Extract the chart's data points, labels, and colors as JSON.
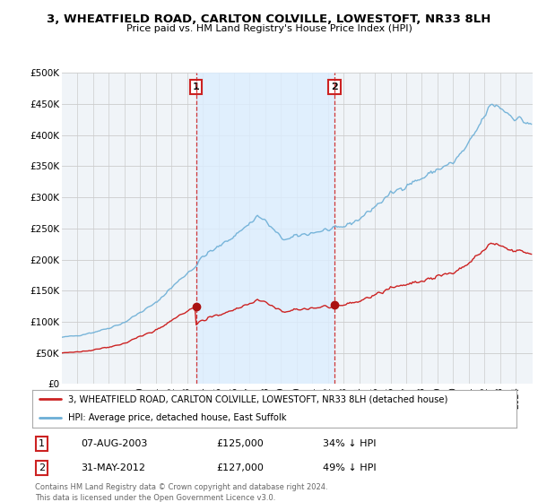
{
  "title": "3, WHEATFIELD ROAD, CARLTON COLVILLE, LOWESTOFT, NR33 8LH",
  "subtitle": "Price paid vs. HM Land Registry's House Price Index (HPI)",
  "legend_line1": "3, WHEATFIELD ROAD, CARLTON COLVILLE, LOWESTOFT, NR33 8LH (detached house)",
  "legend_line2": "HPI: Average price, detached house, East Suffolk",
  "transaction1_date": "07-AUG-2003",
  "transaction1_price": 125000,
  "transaction1_label": "34% ↓ HPI",
  "transaction2_date": "31-MAY-2012",
  "transaction2_price": 127000,
  "transaction2_label": "49% ↓ HPI",
  "footer": "Contains HM Land Registry data © Crown copyright and database right 2024.\nThis data is licensed under the Open Government Licence v3.0.",
  "hpi_color": "#6baed6",
  "price_color": "#cc2222",
  "shade_color": "#ddeeff",
  "background_color": "#f0f4f8",
  "grid_color": "#cccccc",
  "ylim": [
    0,
    500000
  ],
  "yticks": [
    0,
    50000,
    100000,
    150000,
    200000,
    250000,
    300000,
    350000,
    400000,
    450000,
    500000
  ],
  "ytick_labels": [
    "£0",
    "£50K",
    "£100K",
    "£150K",
    "£200K",
    "£250K",
    "£300K",
    "£350K",
    "£400K",
    "£450K",
    "£500K"
  ],
  "t1_year": 2003.58,
  "t2_year": 2012.42,
  "t1_price": 125000,
  "t2_price": 127000
}
